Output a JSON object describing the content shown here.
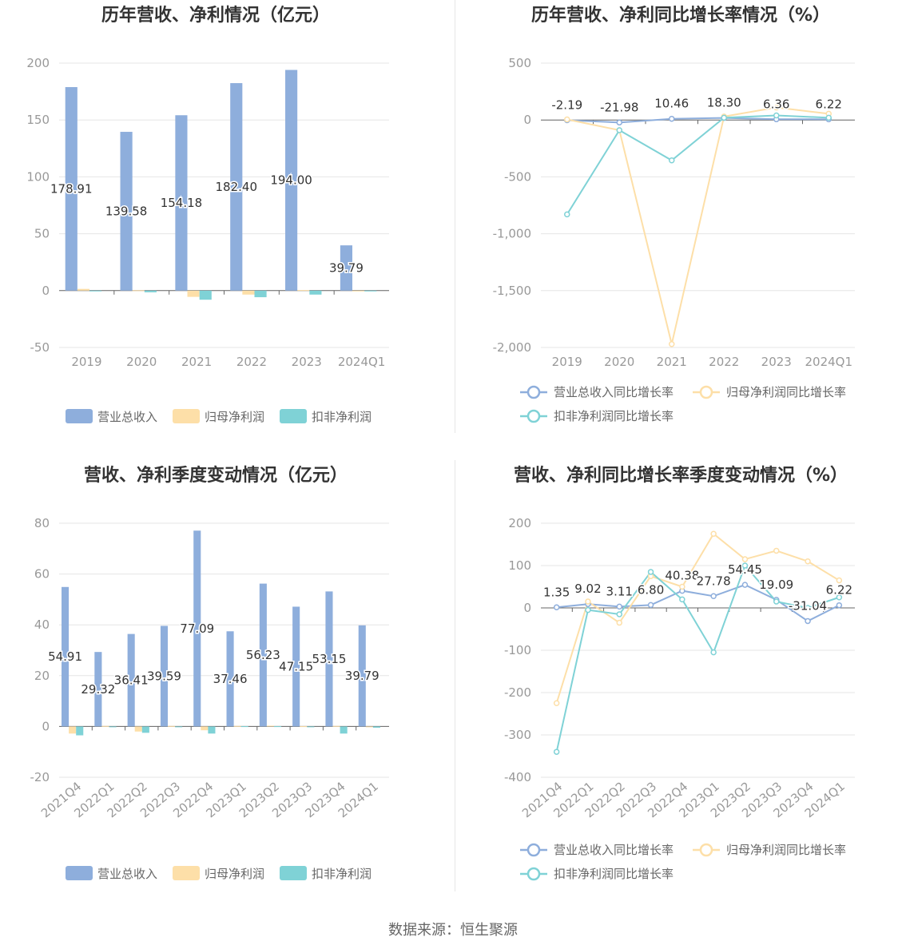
{
  "source_text": "数据来源：恒生聚源",
  "legend_labels": {
    "bar": [
      "营业总收入",
      "归母净利润",
      "扣非净利润"
    ],
    "line": [
      "营业总收入同比增长率",
      "归母净利润同比增长率",
      "扣非净利润同比增长率"
    ]
  },
  "colors": {
    "revenue": "#8eaedc",
    "net_profit": "#fddfa8",
    "deducted_profit": "#7fd2d6"
  },
  "chart_data": [
    {
      "id": "annual-values",
      "type": "bar",
      "title": "历年营收、净利情况（亿元）",
      "categories": [
        "2019",
        "2020",
        "2021",
        "2022",
        "2023",
        "2024Q1"
      ],
      "series": [
        {
          "name": "营业总收入",
          "values": [
            178.91,
            139.58,
            154.18,
            182.4,
            194.0,
            39.79
          ],
          "labels": [
            "178.91",
            "139.58",
            "154.18",
            "182.40",
            "194.00",
            "39.79"
          ]
        },
        {
          "name": "归母净利润",
          "values": [
            1.5,
            0.3,
            -5.5,
            -3.5,
            0.5,
            -0.4
          ]
        },
        {
          "name": "扣非净利润",
          "values": [
            -0.5,
            -1.5,
            -8.0,
            -5.8,
            -3.5,
            -0.5
          ]
        }
      ],
      "yticks": [
        "200",
        "150",
        "100",
        "50",
        "0",
        "-50"
      ],
      "ylim": [
        -50,
        200
      ],
      "grid": true,
      "legend_position": "bottom"
    },
    {
      "id": "annual-growth",
      "type": "line",
      "title": "历年营收、净利同比增长率情况（%）",
      "categories": [
        "2019",
        "2020",
        "2021",
        "2022",
        "2023",
        "2024Q1"
      ],
      "series": [
        {
          "name": "营业总收入同比增长率",
          "values": [
            -2.19,
            -21.98,
            10.46,
            18.3,
            6.36,
            6.22
          ],
          "labels": [
            "-2.19",
            "-21.98",
            "10.46",
            "18.30",
            "6.36",
            "6.22"
          ]
        },
        {
          "name": "归母净利润同比增长率",
          "values": [
            5,
            -90,
            -1970,
            30,
            110,
            55
          ]
        },
        {
          "name": "扣非净利润同比增长率",
          "values": [
            -830,
            -90,
            -355,
            20,
            40,
            20
          ]
        }
      ],
      "yticks": [
        "500",
        "0",
        "-500",
        "-1,000",
        "-1,500",
        "-2,000"
      ],
      "ylim": [
        -2000,
        500
      ],
      "grid": true,
      "legend_position": "bottom"
    },
    {
      "id": "quarterly-values",
      "type": "bar",
      "title": "营收、净利季度变动情况（亿元）",
      "categories": [
        "2021Q4",
        "2022Q1",
        "2022Q2",
        "2022Q3",
        "2022Q4",
        "2023Q1",
        "2023Q2",
        "2023Q3",
        "2023Q4",
        "2024Q1"
      ],
      "series": [
        {
          "name": "营业总收入",
          "values": [
            54.91,
            29.32,
            36.41,
            39.59,
            77.09,
            37.46,
            56.23,
            47.15,
            53.15,
            39.79
          ],
          "labels": [
            "54.91",
            "29.32",
            "36.41",
            "39.59",
            "77.09",
            "37.46",
            "56.23",
            "47.15",
            "53.15",
            "39.79"
          ]
        },
        {
          "name": "归母净利润",
          "values": [
            -2.8,
            0.2,
            -2.0,
            0.2,
            -1.5,
            0.2,
            0.3,
            0.1,
            0.2,
            -0.3
          ]
        },
        {
          "name": "扣非净利润",
          "values": [
            -3.5,
            -0.2,
            -2.5,
            -0.1,
            -2.8,
            0.1,
            0.1,
            -0.2,
            -2.8,
            -0.5
          ]
        }
      ],
      "yticks": [
        "80",
        "60",
        "40",
        "20",
        "0",
        "-20"
      ],
      "ylim": [
        -20,
        80
      ],
      "grid": true,
      "legend_position": "bottom"
    },
    {
      "id": "quarterly-growth",
      "type": "line",
      "title": "营收、净利同比增长率季度变动情况（%）",
      "categories": [
        "2021Q4",
        "2022Q1",
        "2022Q2",
        "2022Q3",
        "2022Q4",
        "2023Q1",
        "2023Q2",
        "2023Q3",
        "2023Q4",
        "2024Q1"
      ],
      "series": [
        {
          "name": "营业总收入同比增长率",
          "values": [
            1.35,
            9.02,
            3.11,
            6.8,
            40.38,
            27.78,
            54.45,
            19.09,
            -31.04,
            6.22
          ],
          "labels": [
            "1.35",
            "9.02",
            "3.11",
            "6.80",
            "40.38",
            "27.78",
            "54.45",
            "19.09",
            "-31.04",
            "6.22"
          ]
        },
        {
          "name": "归母净利润同比增长率",
          "values": [
            -225,
            15,
            -35,
            75,
            50,
            175,
            115,
            135,
            110,
            65
          ]
        },
        {
          "name": "扣非净利润同比增长率",
          "values": [
            -340,
            -5,
            -15,
            85,
            20,
            -105,
            100,
            15,
            0,
            25
          ]
        }
      ],
      "yticks": [
        "200",
        "100",
        "0",
        "-100",
        "-200",
        "-300",
        "-400"
      ],
      "ylim": [
        -400,
        200
      ],
      "grid": true,
      "legend_position": "bottom"
    }
  ]
}
